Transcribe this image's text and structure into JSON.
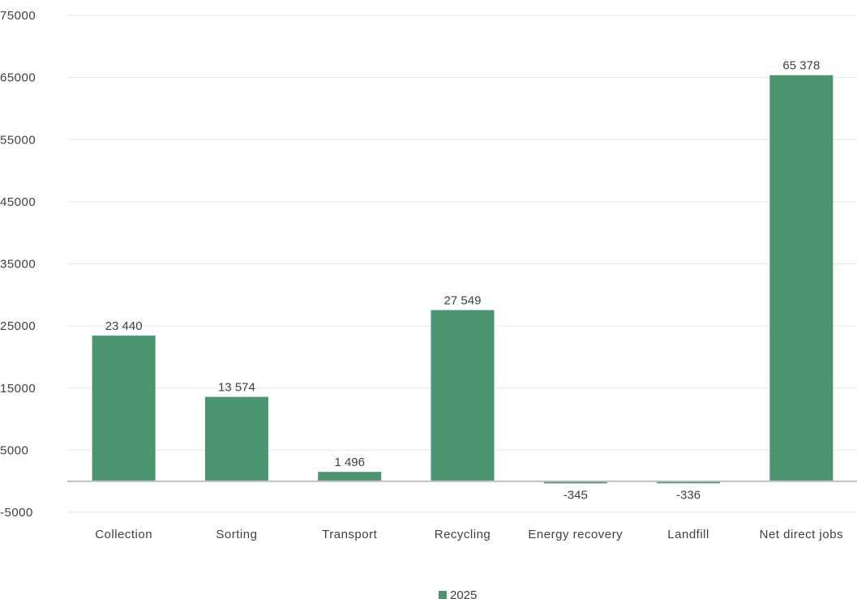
{
  "chart_data": {
    "type": "bar",
    "categories": [
      "Collection",
      "Sorting",
      "Transport",
      "Recycling",
      "Energy recovery",
      "Landfill",
      "Net direct jobs"
    ],
    "series": [
      {
        "name": "2025",
        "values": [
          23440,
          13574,
          1496,
          27549,
          -345,
          -336,
          65378
        ]
      }
    ],
    "data_labels": [
      "23 440",
      "13 574",
      "1 496",
      "27 549",
      "-345",
      "-336",
      "65 378"
    ],
    "y_ticks": [
      -5000,
      5000,
      15000,
      25000,
      35000,
      45000,
      55000,
      65000,
      75000
    ],
    "ylim": [
      -5000,
      75000
    ],
    "grid": true,
    "legend_position": "bottom",
    "bar_color": "#4a9470",
    "grid_color": "#e6e6e6",
    "axis_color": "#bfbfbf",
    "title": "",
    "xlabel": "",
    "ylabel": ""
  }
}
